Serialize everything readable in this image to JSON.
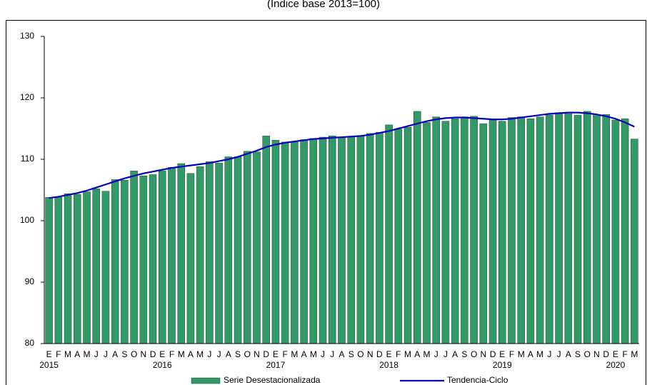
{
  "chart_data": {
    "type": "bar",
    "subtitle": "(Índice base 2013=100)",
    "categories": [
      "E",
      "F",
      "M",
      "A",
      "M",
      "J",
      "J",
      "A",
      "S",
      "O",
      "N",
      "D",
      "E",
      "F",
      "M",
      "A",
      "M",
      "J",
      "J",
      "A",
      "S",
      "O",
      "N",
      "D",
      "E",
      "F",
      "M",
      "A",
      "M",
      "J",
      "J",
      "A",
      "S",
      "O",
      "N",
      "D",
      "E",
      "F",
      "M",
      "A",
      "M",
      "J",
      "J",
      "A",
      "S",
      "O",
      "N",
      "D",
      "E",
      "F",
      "M",
      "A",
      "M",
      "J",
      "J",
      "A",
      "S",
      "O",
      "N",
      "D",
      "E",
      "F",
      "M"
    ],
    "years": [
      "2015",
      "2016",
      "2017",
      "2018",
      "2019",
      "2020"
    ],
    "series": [
      {
        "name": "Serie Desestacionalizada",
        "type": "bar",
        "color": "#339966",
        "values": [
          103.8,
          103.8,
          104.4,
          104.3,
          104.7,
          105.2,
          104.8,
          106.7,
          106.6,
          108.1,
          107.3,
          107.5,
          108.1,
          108.7,
          109.3,
          107.7,
          108.8,
          109.6,
          109.4,
          110.4,
          110.4,
          111.3,
          111.2,
          113.8,
          113.1,
          112.8,
          112.8,
          113.2,
          113.4,
          113.6,
          113.8,
          113.5,
          113.7,
          113.8,
          114.2,
          114.4,
          115.6,
          114.9,
          115.2,
          117.8,
          116.0,
          116.9,
          116.2,
          116.6,
          116.9,
          117.0,
          115.8,
          116.4,
          116.2,
          116.8,
          116.9,
          116.6,
          116.9,
          117.2,
          117.6,
          117.4,
          117.2,
          117.8,
          117.3,
          117.3,
          116.4,
          116.6,
          113.3
        ]
      },
      {
        "name": "Tendencia-Ciclo",
        "type": "line",
        "color": "#0000c0",
        "values": [
          103.7,
          103.9,
          104.2,
          104.5,
          104.9,
          105.4,
          105.9,
          106.4,
          106.9,
          107.3,
          107.7,
          108.0,
          108.3,
          108.6,
          108.8,
          109.0,
          109.2,
          109.4,
          109.7,
          110.0,
          110.4,
          110.9,
          111.4,
          112.0,
          112.4,
          112.7,
          112.9,
          113.1,
          113.3,
          113.4,
          113.5,
          113.6,
          113.7,
          113.8,
          114.0,
          114.3,
          114.6,
          115.0,
          115.4,
          115.8,
          116.2,
          116.5,
          116.7,
          116.8,
          116.8,
          116.7,
          116.6,
          116.5,
          116.5,
          116.6,
          116.8,
          117.0,
          117.2,
          117.4,
          117.5,
          117.6,
          117.6,
          117.5,
          117.3,
          117.0,
          116.6,
          116.0,
          115.3
        ]
      }
    ],
    "ylim": [
      80,
      130
    ],
    "yticks": [
      80,
      90,
      100,
      110,
      120,
      130
    ],
    "grid": false,
    "legend": "bottom"
  }
}
